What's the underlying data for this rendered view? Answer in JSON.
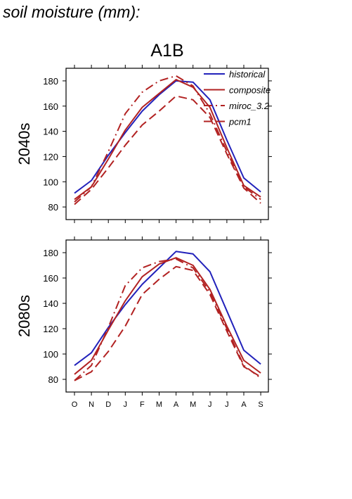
{
  "page": {
    "title": "soil moisture (mm):",
    "scenario": "A1B"
  },
  "colors": {
    "historical": "#2222bb",
    "projection": "#b22222",
    "axis": "#000000"
  },
  "chart_data": [
    {
      "type": "line",
      "panel_label": "2040s",
      "categories": [
        "O",
        "N",
        "D",
        "J",
        "F",
        "M",
        "A",
        "M",
        "J",
        "J",
        "A",
        "S"
      ],
      "ylim": [
        70,
        190
      ],
      "yticks": [
        80,
        100,
        120,
        140,
        160,
        180
      ],
      "grid": false,
      "legend": {
        "position": "top-right",
        "entries": [
          "historical",
          "composite",
          "miroc_3.2",
          "pcm1"
        ]
      },
      "series": [
        {
          "name": "historical",
          "style": "solid",
          "color": "#2222bb",
          "values": [
            91,
            101,
            121,
            139,
            156,
            169,
            180,
            179,
            165,
            133,
            103,
            92
          ]
        },
        {
          "name": "composite",
          "style": "solid",
          "color": "#b22222",
          "values": [
            86,
            96,
            118,
            141,
            159,
            170,
            181,
            175,
            159,
            127,
            97,
            88
          ]
        },
        {
          "name": "miroc_3.2",
          "style": "dashdot",
          "color": "#b22222",
          "values": [
            84,
            96,
            124,
            154,
            171,
            180,
            184,
            176,
            154,
            124,
            96,
            86
          ]
        },
        {
          "name": "pcm1",
          "style": "dashed",
          "color": "#b22222",
          "values": [
            82,
            94,
            111,
            129,
            145,
            156,
            168,
            165,
            151,
            122,
            95,
            83
          ]
        }
      ]
    },
    {
      "type": "line",
      "panel_label": "2080s",
      "categories": [
        "O",
        "N",
        "D",
        "J",
        "F",
        "M",
        "A",
        "M",
        "J",
        "J",
        "A",
        "S"
      ],
      "ylim": [
        70,
        190
      ],
      "yticks": [
        80,
        100,
        120,
        140,
        160,
        180
      ],
      "grid": false,
      "series": [
        {
          "name": "historical",
          "style": "solid",
          "color": "#2222bb",
          "values": [
            91,
            101,
            121,
            139,
            155,
            168,
            181,
            179,
            165,
            134,
            103,
            92
          ]
        },
        {
          "name": "composite",
          "style": "solid",
          "color": "#b22222",
          "values": [
            84,
            95,
            119,
            142,
            161,
            171,
            176,
            170,
            151,
            122,
            95,
            85
          ]
        },
        {
          "name": "miroc_3.2",
          "style": "dashdot",
          "color": "#b22222",
          "values": [
            79,
            91,
            121,
            154,
            168,
            173,
            175,
            168,
            149,
            120,
            91,
            81
          ]
        },
        {
          "name": "pcm1",
          "style": "dashed",
          "color": "#b22222",
          "values": [
            79,
            86,
            102,
            122,
            147,
            159,
            169,
            166,
            147,
            118,
            90,
            82
          ]
        }
      ]
    }
  ]
}
